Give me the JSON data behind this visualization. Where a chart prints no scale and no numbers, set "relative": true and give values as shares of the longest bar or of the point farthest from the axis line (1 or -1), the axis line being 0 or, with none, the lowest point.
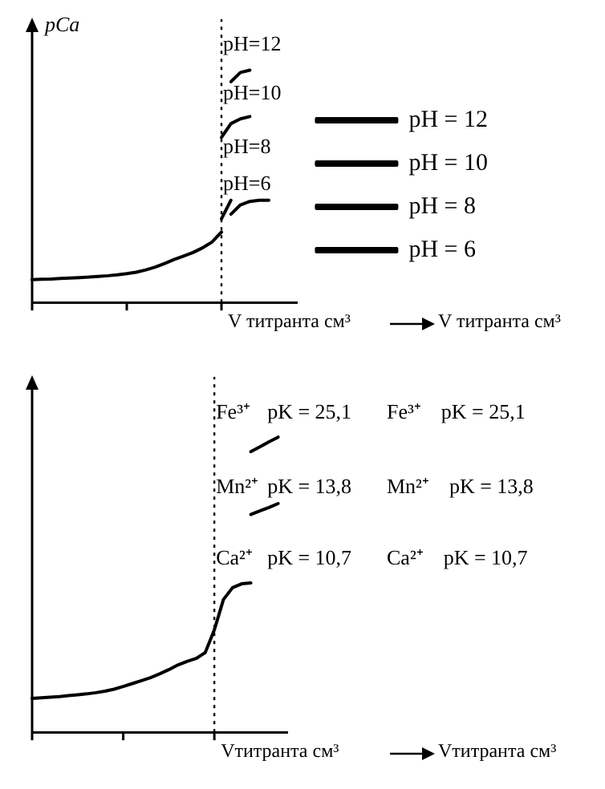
{
  "chart_data": [
    {
      "type": "line",
      "ylabel": "pCa",
      "xlabel": "V титранта см³",
      "relative": true,
      "legend": "right",
      "categories": [
        null,
        null,
        null,
        null,
        null,
        null,
        null,
        null,
        null,
        null,
        null,
        null,
        null,
        null,
        null,
        null,
        null,
        null,
        null,
        null,
        null,
        null,
        null,
        null,
        null,
        null,
        null,
        null,
        null
      ],
      "series": [
        {
          "color": "#000000",
          "values": [
            0.098,
            0.1,
            0.101,
            0.103,
            0.105,
            0.107,
            0.109,
            0.112,
            0.115,
            0.119,
            0.124,
            0.13,
            0.14,
            0.152,
            0.168,
            0.185,
            0.2,
            0.215,
            0.235,
            0.26,
            0.303,
            null,
            null,
            null,
            null,
            null,
            null,
            null,
            null
          ]
        },
        {
          "name": "pH = 12",
          "color": "#000000",
          "values": [
            null,
            null,
            null,
            null,
            null,
            null,
            null,
            null,
            null,
            null,
            null,
            null,
            null,
            null,
            null,
            null,
            null,
            null,
            null,
            null,
            null,
            0.95,
            0.99,
            1.0,
            null,
            null,
            null,
            null,
            null
          ]
        },
        {
          "name": "pH = 10",
          "color": "#000000",
          "values": [
            null,
            null,
            null,
            null,
            null,
            null,
            null,
            null,
            null,
            null,
            null,
            null,
            null,
            null,
            null,
            null,
            null,
            null,
            null,
            null,
            0.71,
            0.77,
            0.79,
            0.8,
            null,
            null,
            null,
            null,
            null
          ]
        },
        {
          "name": "pH = 8",
          "color": "#000000",
          "values": [
            null,
            null,
            null,
            null,
            null,
            null,
            null,
            null,
            null,
            null,
            null,
            null,
            null,
            null,
            null,
            null,
            null,
            null,
            null,
            null,
            0.36,
            0.44,
            null,
            null,
            null,
            null,
            null,
            null,
            null
          ]
        },
        {
          "name": "pH = 6",
          "color": "#000000",
          "values": [
            null,
            null,
            null,
            null,
            null,
            null,
            null,
            null,
            null,
            null,
            null,
            null,
            null,
            null,
            null,
            null,
            null,
            null,
            null,
            null,
            null,
            0.38,
            0.42,
            0.435,
            0.44,
            0.44,
            null,
            null,
            null
          ]
        }
      ],
      "annotations": [
        "pH=12",
        "pH=10",
        "pH=8",
        "pH=6",
        "V титранта см³"
      ]
    },
    {
      "type": "line",
      "xlabel": "Vтитранта см³",
      "relative": true,
      "categories": [
        null,
        null,
        null,
        null,
        null,
        null,
        null,
        null,
        null,
        null,
        null,
        null,
        null,
        null,
        null,
        null,
        null,
        null,
        null,
        null,
        null,
        null,
        null,
        null,
        null,
        null,
        null,
        null,
        null
      ],
      "series": [
        {
          "color": "#000000",
          "values": [
            0.115,
            0.117,
            0.119,
            0.121,
            0.124,
            0.127,
            0.13,
            0.134,
            0.139,
            0.146,
            0.155,
            0.165,
            0.175,
            0.185,
            0.198,
            0.212,
            0.228,
            0.24,
            0.25,
            0.27,
            0.347,
            0.45,
            0.49,
            0.503,
            0.506,
            null,
            null,
            null,
            null
          ]
        },
        {
          "color": "#000000",
          "values": [
            null,
            null,
            null,
            null,
            null,
            null,
            null,
            null,
            null,
            null,
            null,
            null,
            null,
            null,
            null,
            null,
            null,
            null,
            null,
            null,
            null,
            null,
            null,
            null,
            0.738,
            0.75,
            0.762,
            0.775,
            null
          ]
        },
        {
          "color": "#000000",
          "values": [
            null,
            null,
            null,
            null,
            null,
            null,
            null,
            null,
            null,
            null,
            null,
            null,
            null,
            null,
            null,
            null,
            null,
            null,
            null,
            null,
            null,
            null,
            null,
            null,
            0.951,
            0.967,
            0.984,
            1.0,
            null
          ]
        }
      ],
      "annotations": [
        "Fe³⁺",
        "pK = 25,1",
        "Mn²⁺",
        "pK = 13,8",
        "Ca²⁺",
        "pK = 10,7",
        "Fe³⁺    pK = 25,1",
        "Mn²⁺    pK = 13,8",
        "Ca²⁺    pK = 10,7",
        "Vтитранта см³"
      ]
    }
  ]
}
